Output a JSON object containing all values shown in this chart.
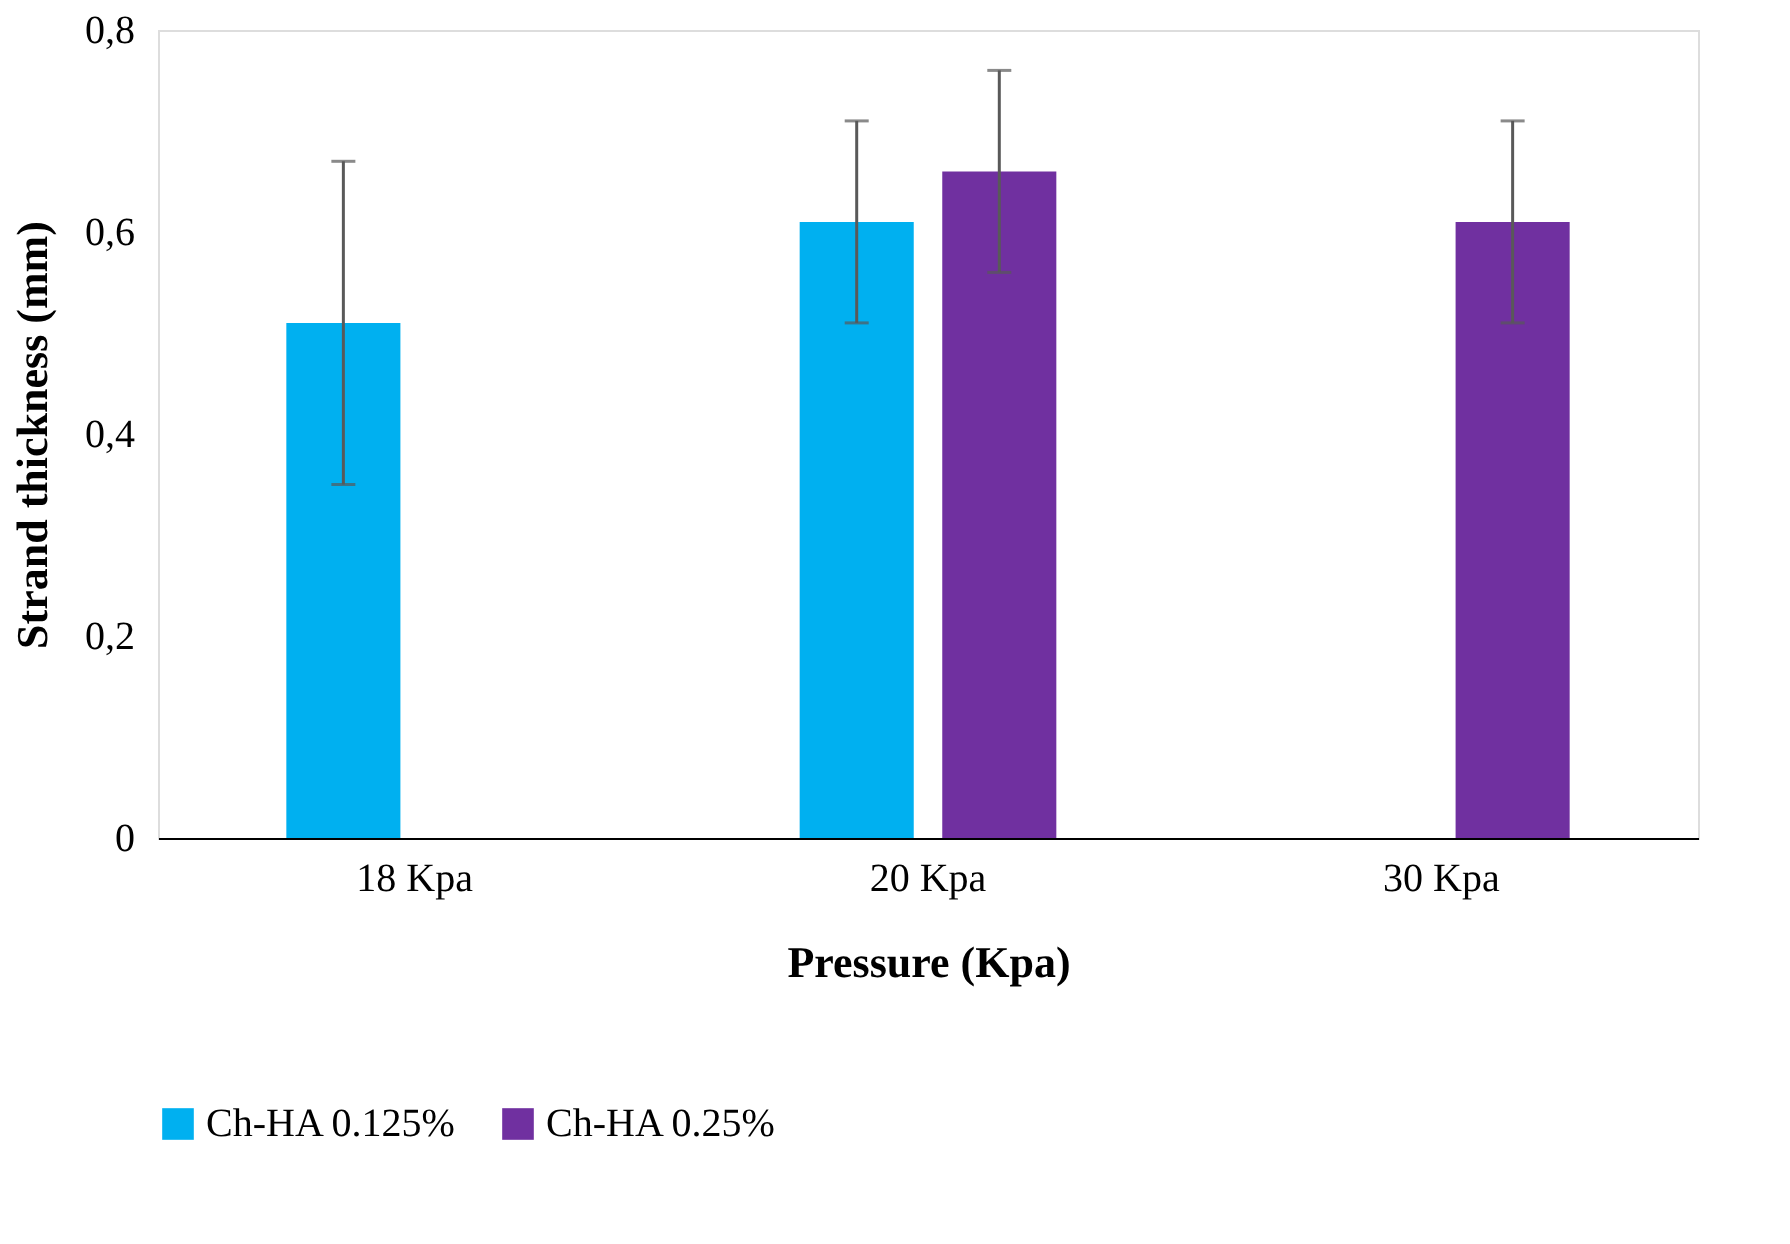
{
  "chart_data": {
    "type": "bar",
    "xlabel": "Pressure (Kpa)",
    "ylabel": "Strand thickness (mm)",
    "categories": [
      "18 Kpa",
      "20 Kpa",
      "30 Kpa"
    ],
    "series": [
      {
        "name": "Ch-HA 0.125%",
        "color": "#00b0f0",
        "values": [
          0.51,
          0.61,
          null
        ],
        "errors": [
          0.16,
          0.1,
          null
        ]
      },
      {
        "name": "Ch-HA 0.25%",
        "color": "#7030a0",
        "values": [
          null,
          0.66,
          0.61
        ],
        "errors": [
          null,
          0.1,
          0.1
        ]
      }
    ],
    "ylim": [
      0,
      0.8
    ],
    "yticks": [
      0,
      {
        "value": 0.2,
        "label": "0,2"
      },
      {
        "value": 0.4,
        "label": "0,4"
      },
      {
        "value": 0.6,
        "label": "0,6"
      },
      {
        "value": 0.8,
        "label": "0,8"
      }
    ],
    "grid": false,
    "legend": "bottom"
  }
}
